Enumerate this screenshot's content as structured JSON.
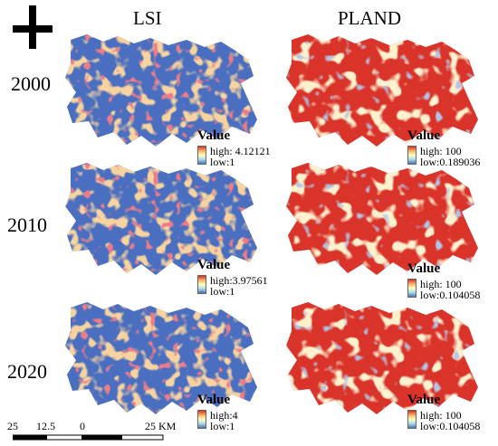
{
  "north_arrow": "north-arrow-icon",
  "columns": [
    "LSI",
    "PLAND"
  ],
  "years": [
    "2000",
    "2010",
    "2020"
  ],
  "legends": {
    "lsi": [
      {
        "title": "Value",
        "high": "high: 4.12121",
        "low": "low:1"
      },
      {
        "title": "Value",
        "high": "high:3.97561",
        "low": "low:1"
      },
      {
        "title": "Value",
        "high": "high:4",
        "low": "low:1"
      }
    ],
    "pland": [
      {
        "title": "Value",
        "high": "high: 100",
        "low": "low:0.189036"
      },
      {
        "title": "Value",
        "high": "high: 100",
        "low": "low:0.104058"
      },
      {
        "title": "Value",
        "high": "high: 100",
        "low": "low:0.104058"
      }
    ]
  },
  "scale_bar": {
    "labels": [
      "25",
      "12.5",
      "0",
      "25 KM"
    ]
  },
  "colors": {
    "lsi_base": "#4a6fc0",
    "pland_base": "#d9332a",
    "ramp_high": "#d7301f",
    "ramp_mid": "#ffffbf",
    "ramp_low": "#4575b4"
  }
}
